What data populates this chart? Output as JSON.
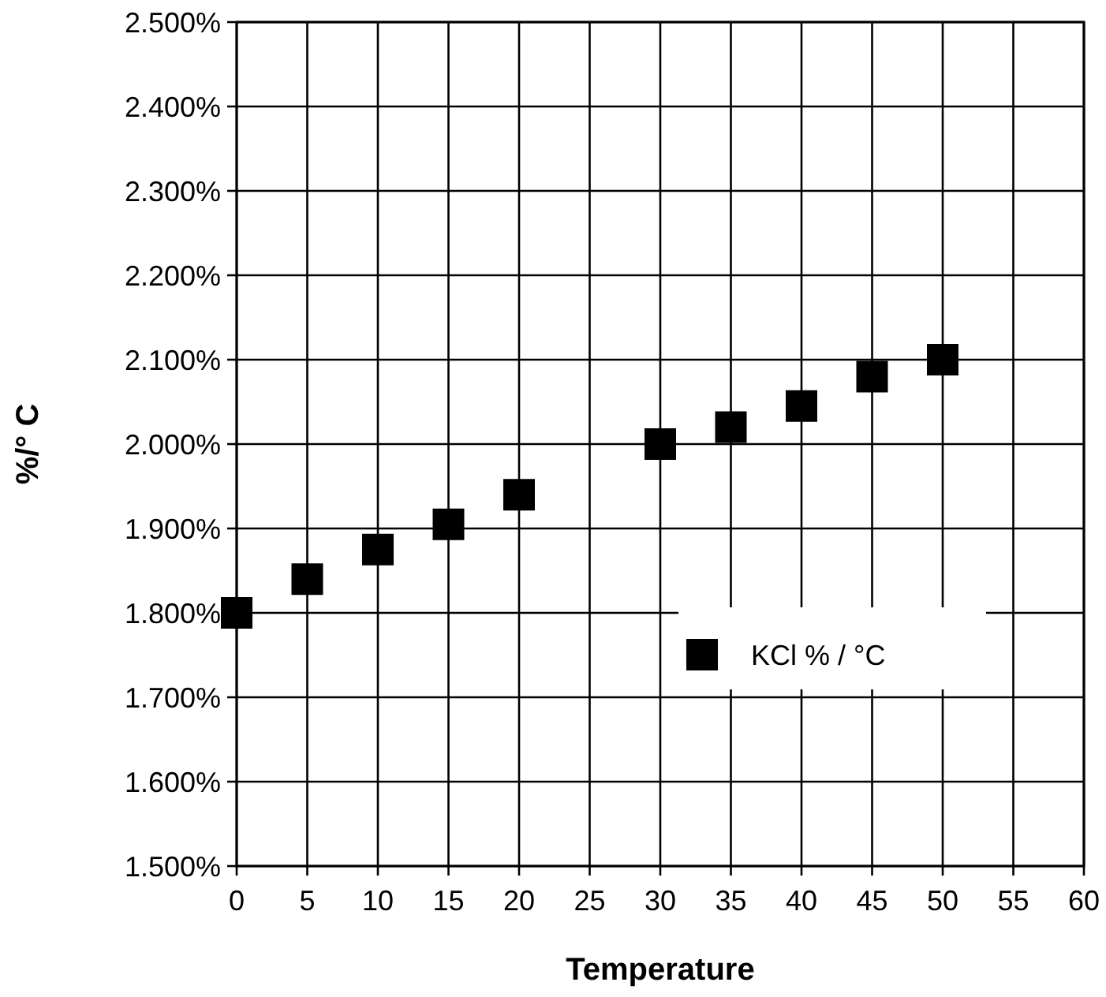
{
  "chart_data": {
    "type": "scatter",
    "xlabel": "Temperature",
    "ylabel": "%/° C",
    "x": [
      0,
      5,
      10,
      15,
      20,
      30,
      35,
      40,
      45,
      50
    ],
    "series": [
      {
        "name": "KCl % / °C",
        "color": "#000000",
        "values": [
          1.8,
          1.84,
          1.875,
          1.905,
          1.94,
          2.0,
          2.02,
          2.045,
          2.08,
          2.1
        ]
      }
    ],
    "xlim": [
      0,
      60
    ],
    "xticks": [
      0,
      5,
      10,
      15,
      20,
      25,
      30,
      35,
      40,
      45,
      50,
      55,
      60
    ],
    "ylim": [
      1.5,
      2.5
    ],
    "yticks": [
      {
        "value": 1.5,
        "label": "1.500%"
      },
      {
        "value": 1.6,
        "label": "1.600%"
      },
      {
        "value": 1.7,
        "label": "1.700%"
      },
      {
        "value": 1.8,
        "label": "1.800%"
      },
      {
        "value": 1.9,
        "label": "1.900%"
      },
      {
        "value": 2.0,
        "label": "2.000%"
      },
      {
        "value": 2.1,
        "label": "2.100%"
      },
      {
        "value": 2.2,
        "label": "2.200%"
      },
      {
        "value": 2.3,
        "label": "2.300%"
      },
      {
        "value": 2.4,
        "label": "2.400%"
      },
      {
        "value": 2.5,
        "label": "2.500%"
      }
    ],
    "grid": true,
    "marker": "square",
    "legend": "right"
  }
}
